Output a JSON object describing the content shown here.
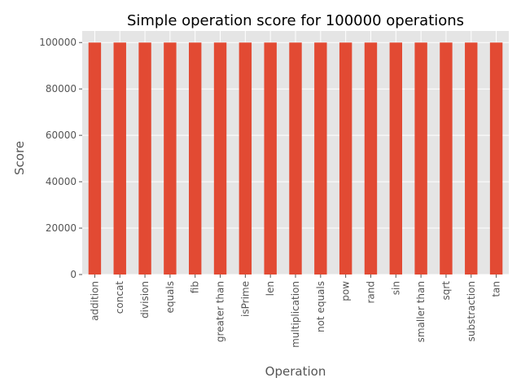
{
  "chart_data": {
    "type": "bar",
    "title": "Simple operation score for 100000 operations",
    "xlabel": "Operation",
    "ylabel": "Score",
    "categories": [
      "addition",
      "concat",
      "division",
      "equals",
      "fib",
      "greater than",
      "isPrime",
      "len",
      "multiplication",
      "not equals",
      "pow",
      "rand",
      "sin",
      "smaller than",
      "sqrt",
      "substraction",
      "tan"
    ],
    "values": [
      100000,
      100000,
      100000,
      100000,
      100000,
      100000,
      100000,
      100000,
      100000,
      100000,
      100000,
      100000,
      100000,
      100000,
      100000,
      100000,
      100000
    ],
    "ylim": [
      0,
      105000
    ],
    "yticks": [
      0,
      20000,
      40000,
      60000,
      80000,
      100000
    ],
    "grid": true,
    "legend": "none",
    "colors": {
      "bar": "#E24A33",
      "plot_background": "#E5E5E5",
      "grid": "#FFFFFF",
      "text": "#555555"
    }
  }
}
